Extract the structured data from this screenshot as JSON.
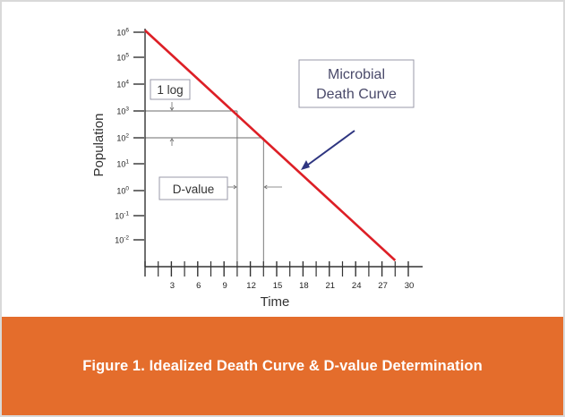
{
  "chart_data": {
    "type": "line",
    "y_scale": "log",
    "ylabel": "Population",
    "xlabel": "Time",
    "x_ticks": [
      "3",
      "6",
      "9",
      "12",
      "15",
      "18",
      "21",
      "24",
      "27",
      "30"
    ],
    "y_ticks": [
      {
        "base": "10",
        "exp": "6"
      },
      {
        "base": "10",
        "exp": "5"
      },
      {
        "base": "10",
        "exp": "4"
      },
      {
        "base": "10",
        "exp": "3"
      },
      {
        "base": "10",
        "exp": "2"
      },
      {
        "base": "10",
        "exp": "1"
      },
      {
        "base": "10",
        "exp": "0"
      },
      {
        "base": "10",
        "exp": "-1"
      },
      {
        "base": "10",
        "exp": "-2"
      }
    ],
    "xlim": [
      0,
      30
    ],
    "series": [
      {
        "x": [
          0,
          3,
          6,
          9,
          12,
          15,
          18,
          21,
          24,
          27,
          28.5
        ],
        "y": [
          1000000,
          250000,
          60000,
          15000,
          3000,
          800,
          180,
          40,
          10,
          2,
          1
        ]
      }
    ],
    "d_value_markers": {
      "x": [
        10.5,
        13.5
      ],
      "y": [
        1000,
        100
      ]
    },
    "annotations": {
      "curve_label_line1": "Microbial",
      "curve_label_line2": "Death Curve",
      "one_log_label": "1 log",
      "d_value_label": "D-value"
    },
    "colors": {
      "curve": "#dd1f26",
      "axis": "#333333",
      "guide": "#6d6d6d",
      "arrow": "#2e3580"
    }
  },
  "caption": "Figure 1. Idealized Death Curve & D-value Determination",
  "colors": {
    "caption_bar": "#e46d2c",
    "caption_text": "#ffffff"
  }
}
